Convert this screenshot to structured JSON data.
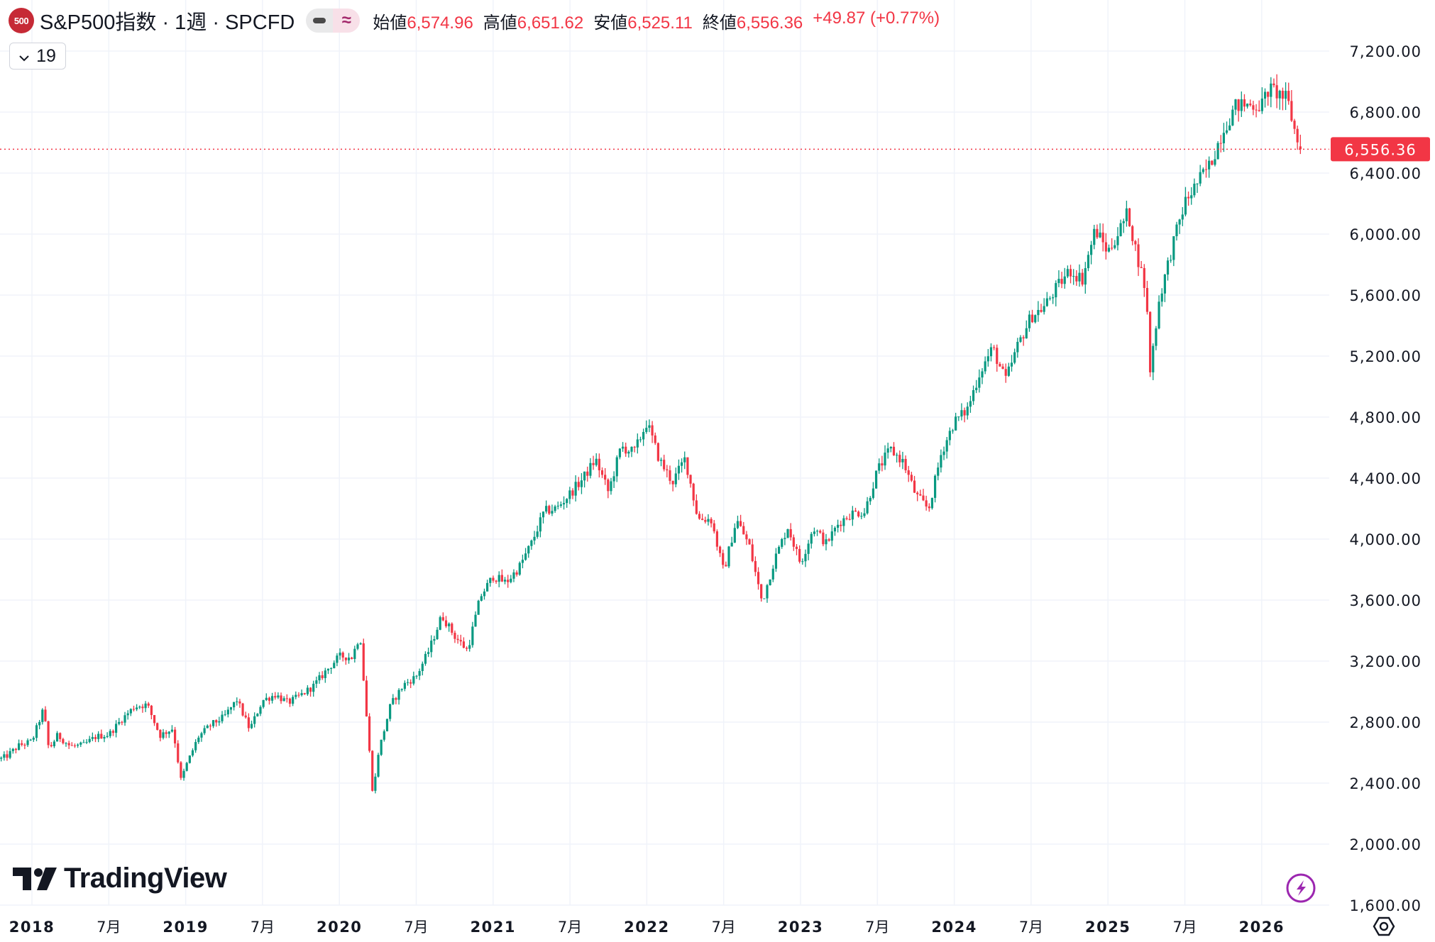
{
  "header": {
    "logo_text": "500",
    "title": "S&P500指数 · 1週 · SPCFD",
    "open_label": "始値",
    "open": "6,574.96",
    "high_label": "高値",
    "high": "6,651.62",
    "low_label": "安値",
    "low": "6,525.11",
    "close_label": "終値",
    "close": "6,556.36",
    "change": "+49.87 (+0.77%)",
    "pill_symbol": "≈"
  },
  "legend_button": {
    "count": "19"
  },
  "watermark": "TradingView",
  "colors": {
    "up": "#089981",
    "down": "#f23645",
    "grid": "#f0f3fa",
    "price_tag": "#f23645",
    "lightning": "#9c27b0"
  },
  "chart_data": {
    "type": "candlestick",
    "title": "S&P500指数 · 1週 · SPCFD",
    "ylim": [
      1600,
      7200
    ],
    "y_ticks": [
      "7,200.00",
      "6,800.00",
      "6,400.00",
      "6,000.00",
      "5,600.00",
      "5,200.00",
      "4,800.00",
      "4,400.00",
      "4,000.00",
      "3,600.00",
      "3,200.00",
      "2,800.00",
      "2,400.00",
      "2,000.00",
      "1,600.00"
    ],
    "y_tick_values": [
      7200,
      6800,
      6400,
      6000,
      5600,
      5200,
      4800,
      4400,
      4000,
      3600,
      3200,
      2800,
      2400,
      2000,
      1600
    ],
    "x_ticks": [
      {
        "label": "2018",
        "t": 2018.0,
        "bold": true
      },
      {
        "label": "7月",
        "t": 2018.5,
        "bold": false
      },
      {
        "label": "2019",
        "t": 2019.0,
        "bold": true
      },
      {
        "label": "7月",
        "t": 2019.5,
        "bold": false
      },
      {
        "label": "2020",
        "t": 2020.0,
        "bold": true
      },
      {
        "label": "7月",
        "t": 2020.5,
        "bold": false
      },
      {
        "label": "2021",
        "t": 2021.0,
        "bold": true
      },
      {
        "label": "7月",
        "t": 2021.5,
        "bold": false
      },
      {
        "label": "2022",
        "t": 2022.0,
        "bold": true
      },
      {
        "label": "7月",
        "t": 2022.5,
        "bold": false
      },
      {
        "label": "2023",
        "t": 2023.0,
        "bold": true
      },
      {
        "label": "7月",
        "t": 2023.5,
        "bold": false
      },
      {
        "label": "2024",
        "t": 2024.0,
        "bold": true
      },
      {
        "label": "7月",
        "t": 2024.5,
        "bold": false
      },
      {
        "label": "2025",
        "t": 2025.0,
        "bold": true
      },
      {
        "label": "7月",
        "t": 2025.5,
        "bold": false
      },
      {
        "label": "2026",
        "t": 2026.0,
        "bold": true
      }
    ],
    "last_price": 6556.36,
    "last_price_label": "6,556.36",
    "interval": "1W",
    "start_t": 2017.8,
    "weeks": 442,
    "last_candle": {
      "o": 6574.96,
      "h": 6651.62,
      "l": 6525.11,
      "c": 6556.36
    },
    "approx_closes": [
      [
        2017.8,
        2560
      ],
      [
        2017.833,
        2575
      ],
      [
        2017.917,
        2647
      ],
      [
        2018.0,
        2674
      ],
      [
        2018.07,
        2872
      ],
      [
        2018.083,
        2824
      ],
      [
        2018.11,
        2620
      ],
      [
        2018.167,
        2714
      ],
      [
        2018.25,
        2641
      ],
      [
        2018.333,
        2648
      ],
      [
        2018.417,
        2705
      ],
      [
        2018.5,
        2718
      ],
      [
        2018.583,
        2816
      ],
      [
        2018.667,
        2902
      ],
      [
        2018.75,
        2914
      ],
      [
        2018.833,
        2712
      ],
      [
        2018.917,
        2760
      ],
      [
        2018.97,
        2416
      ],
      [
        2019.0,
        2507
      ],
      [
        2019.083,
        2704
      ],
      [
        2019.167,
        2784
      ],
      [
        2019.25,
        2834
      ],
      [
        2019.333,
        2946
      ],
      [
        2019.417,
        2752
      ],
      [
        2019.5,
        2942
      ],
      [
        2019.583,
        2980
      ],
      [
        2019.667,
        2926
      ],
      [
        2019.75,
        2977
      ],
      [
        2019.833,
        3038
      ],
      [
        2019.917,
        3141
      ],
      [
        2020.0,
        3231
      ],
      [
        2020.083,
        3226
      ],
      [
        2020.135,
        3380
      ],
      [
        2020.167,
        2954
      ],
      [
        2020.22,
        2304
      ],
      [
        2020.25,
        2585
      ],
      [
        2020.333,
        2912
      ],
      [
        2020.417,
        3044
      ],
      [
        2020.5,
        3100
      ],
      [
        2020.583,
        3271
      ],
      [
        2020.667,
        3500
      ],
      [
        2020.75,
        3363
      ],
      [
        2020.833,
        3270
      ],
      [
        2020.917,
        3622
      ],
      [
        2021.0,
        3756
      ],
      [
        2021.083,
        3714
      ],
      [
        2021.167,
        3811
      ],
      [
        2021.25,
        3973
      ],
      [
        2021.333,
        4181
      ],
      [
        2021.417,
        4204
      ],
      [
        2021.5,
        4298
      ],
      [
        2021.583,
        4395
      ],
      [
        2021.667,
        4523
      ],
      [
        2021.75,
        4308
      ],
      [
        2021.833,
        4605
      ],
      [
        2021.917,
        4567
      ],
      [
        2022.0,
        4766
      ],
      [
        2022.083,
        4516
      ],
      [
        2022.167,
        4374
      ],
      [
        2022.25,
        4530
      ],
      [
        2022.333,
        4132
      ],
      [
        2022.417,
        4132
      ],
      [
        2022.5,
        3785
      ],
      [
        2022.583,
        4130
      ],
      [
        2022.667,
        3955
      ],
      [
        2022.75,
        3586
      ],
      [
        2022.833,
        3872
      ],
      [
        2022.917,
        4080
      ],
      [
        2023.0,
        3840
      ],
      [
        2023.083,
        4077
      ],
      [
        2023.167,
        3970
      ],
      [
        2023.25,
        4109
      ],
      [
        2023.333,
        4169
      ],
      [
        2023.417,
        4180
      ],
      [
        2023.5,
        4450
      ],
      [
        2023.583,
        4589
      ],
      [
        2023.667,
        4508
      ],
      [
        2023.75,
        4288
      ],
      [
        2023.833,
        4194
      ],
      [
        2023.917,
        4568
      ],
      [
        2024.0,
        4770
      ],
      [
        2024.083,
        4846
      ],
      [
        2024.167,
        5096
      ],
      [
        2024.25,
        5254
      ],
      [
        2024.333,
        5036
      ],
      [
        2024.417,
        5278
      ],
      [
        2024.5,
        5460
      ],
      [
        2024.583,
        5522
      ],
      [
        2024.667,
        5648
      ],
      [
        2024.75,
        5762
      ],
      [
        2024.833,
        5705
      ],
      [
        2024.917,
        6032
      ],
      [
        2025.0,
        5882
      ],
      [
        2025.083,
        6041
      ],
      [
        2025.13,
        6144
      ],
      [
        2025.167,
        5955
      ],
      [
        2025.25,
        5612
      ],
      [
        2025.27,
        5074
      ],
      [
        2025.333,
        5569
      ],
      [
        2025.417,
        5912
      ],
      [
        2025.5,
        6205
      ],
      [
        2025.583,
        6339
      ],
      [
        2025.667,
        6460
      ],
      [
        2025.75,
        6688
      ],
      [
        2025.833,
        6840
      ],
      [
        2025.917,
        6849
      ],
      [
        2026.0,
        6845
      ],
      [
        2026.04,
        6940
      ],
      [
        2026.083,
        6939
      ],
      [
        2026.167,
        6880
      ],
      [
        2026.2,
        6740
      ],
      [
        2026.245,
        6556
      ]
    ]
  }
}
